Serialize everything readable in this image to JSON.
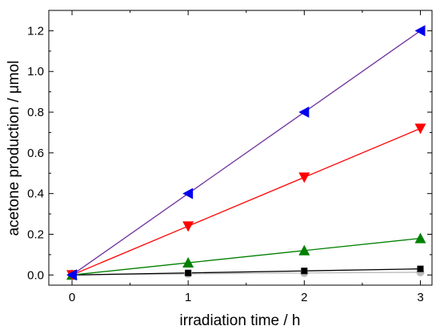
{
  "chart_data": {
    "type": "line",
    "xlabel": "irradiation time / h",
    "ylabel": "acetone production / μmol",
    "xlim": [
      -0.2,
      3.1
    ],
    "ylim": [
      -0.05,
      1.3
    ],
    "x_ticks": [
      "0",
      "1",
      "2",
      "3"
    ],
    "y_ticks": [
      "0.0",
      "0.2",
      "0.4",
      "0.6",
      "0.8",
      "1.0",
      "1.2"
    ],
    "x_tick_values": [
      0,
      1,
      2,
      3
    ],
    "y_tick_values": [
      0.0,
      0.2,
      0.4,
      0.6,
      0.8,
      1.0,
      1.2
    ],
    "grid": false,
    "series": [
      {
        "x": [
          0,
          1,
          2,
          3
        ],
        "values": [
          0.0,
          0.4,
          0.8,
          1.2
        ],
        "line_color": "#7030a0",
        "marker_color": "#0000ee",
        "marker": "triangle-left"
      },
      {
        "x": [
          0,
          1,
          2,
          3
        ],
        "values": [
          0.0,
          0.24,
          0.48,
          0.72
        ],
        "line_color": "#ff0000",
        "marker_color": "#ff0000",
        "marker": "triangle-down"
      },
      {
        "x": [
          0,
          1,
          2,
          3
        ],
        "values": [
          0.0,
          0.06,
          0.12,
          0.18
        ],
        "line_color": "#008000",
        "marker_color": "#008000",
        "marker": "triangle-up"
      },
      {
        "x": [
          0,
          1,
          2,
          3
        ],
        "values": [
          0.0,
          0.01,
          0.02,
          0.03
        ],
        "line_color": "#000000",
        "marker_color": "#000000",
        "marker": "square"
      },
      {
        "x": [
          0,
          1,
          2,
          3
        ],
        "values": [
          0.0,
          0.005,
          0.01,
          0.013
        ],
        "line_color": "#bbbbbb",
        "marker_color": "#bbbbbb",
        "marker": "circle"
      }
    ]
  }
}
